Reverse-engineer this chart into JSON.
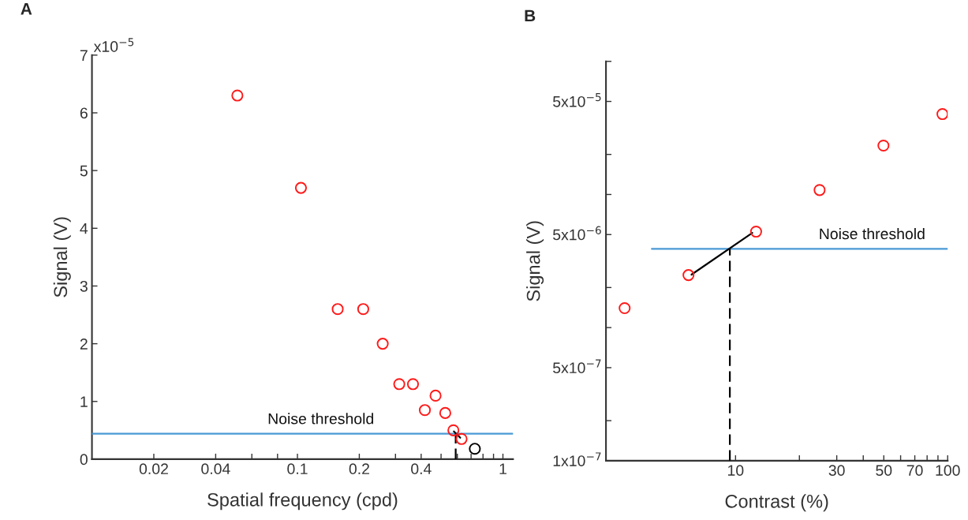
{
  "chart_data": [
    {
      "type": "scatter",
      "title": "A",
      "xlabel": "Spatial frequency (cpd)",
      "ylabel": "Signal (V)",
      "log": "x",
      "xlim": [
        0.01,
        1.12
      ],
      "ylim": [
        0,
        7
      ],
      "xticks": [
        0.02,
        0.04,
        {
          "value": 0.06,
          "label": null
        },
        {
          "value": 0.08,
          "label": null
        },
        0.1,
        0.2,
        {
          "value": 0.3,
          "label": null
        },
        0.4,
        {
          "value": 0.5,
          "label": null
        },
        {
          "value": 0.6,
          "label": null
        },
        {
          "value": 0.7,
          "label": null
        },
        {
          "value": 0.8,
          "label": null
        },
        {
          "value": 0.9,
          "label": null
        },
        1
      ],
      "yticks": [
        0,
        1,
        2,
        3,
        4,
        5,
        6,
        7
      ],
      "series": [
        {
          "color": "#ff1a1a",
          "marker": "circle",
          "x": [
            0.051,
            0.104,
            0.157,
            0.209,
            0.26,
            0.313,
            0.365,
            0.417,
            0.47,
            0.524,
            0.574,
            0.629
          ],
          "values": [
            6.3,
            4.7,
            2.6,
            2.6,
            2.0,
            1.3,
            1.3,
            0.85,
            1.1,
            0.8,
            0.5,
            0.35
          ]
        },
        {
          "color": "#000000",
          "marker": "circle",
          "x": [
            0.73
          ],
          "values": [
            0.18
          ]
        },
        {
          "type": "line",
          "color": "#4a9ad6",
          "x": [
            0.01,
            1.12
          ],
          "values": [
            0.44,
            0.44
          ]
        },
        {
          "type": "line",
          "color": "#000000",
          "x": [
            0.577,
            0.62
          ],
          "values": [
            0.48,
            0.37
          ]
        },
        {
          "type": "line",
          "color": "#000000",
          "line_style": "dashed",
          "x": [
            0.589,
            0.589
          ],
          "values": [
            0,
            0.44
          ]
        }
      ],
      "annotations": [
        "x10$^{−5}$",
        {
          "text": "Noise threshold",
          "x": 0.13,
          "y": 0.44
        }
      ]
    },
    {
      "type": "scatter",
      "title": "B",
      "xlabel": "Contrast (%)",
      "ylabel": "Signal (V)",
      "log": "xy",
      "xlim": [
        2.45,
        100
      ],
      "ylim": [
        1e-07,
        0.0001
      ],
      "xticks": [
        10,
        {
          "value": 20,
          "label": null
        },
        30,
        {
          "value": 40,
          "label": null
        },
        50,
        {
          "value": 60,
          "label": null
        },
        70,
        {
          "value": 80,
          "label": null
        },
        {
          "value": 90,
          "label": null
        },
        100
      ],
      "yticks": [
        {
          "value": 1e-07,
          "label": "1x10$^{−7}$"
        },
        {
          "value": 2e-07,
          "label": null
        },
        {
          "value": 5e-07,
          "label": "5x10$^{−7}$"
        },
        {
          "value": 1e-06,
          "label": null
        },
        {
          "value": 2e-06,
          "label": null
        },
        {
          "value": 5e-06,
          "label": "5x10$^{−6}$"
        },
        {
          "value": 1e-05,
          "label": null
        },
        {
          "value": 2e-05,
          "label": null
        },
        {
          "value": 5e-05,
          "label": "5x10$^{−5}$"
        },
        {
          "value": 0.0001,
          "label": null
        }
      ],
      "series": [
        {
          "color": "#ff1a1a",
          "marker": "circle",
          "x": [
            3.0,
            6.0,
            12.5,
            24.9,
            49.8,
            94.5
          ],
          "values": [
            1.4e-06,
            2.48e-06,
            5.26e-06,
            1.08e-05,
            2.33e-05,
            4.02e-05
          ]
        },
        {
          "type": "line",
          "color": "#4a9ad6",
          "x": [
            4.03,
            100
          ],
          "values": [
            3.9e-06,
            3.9e-06
          ]
        },
        {
          "type": "line",
          "color": "#000000",
          "x": [
            6.2,
            12.0
          ],
          "values": [
            2.5e-06,
            5.15e-06
          ]
        },
        {
          "type": "line",
          "color": "#000000",
          "line_style": "dashed",
          "x": [
            9.4,
            9.4
          ],
          "values": [
            1e-07,
            3.9e-06
          ]
        }
      ],
      "annotations": [
        {
          "text": "Noise threshold",
          "x": 44,
          "y": 3.9e-06
        }
      ]
    }
  ]
}
